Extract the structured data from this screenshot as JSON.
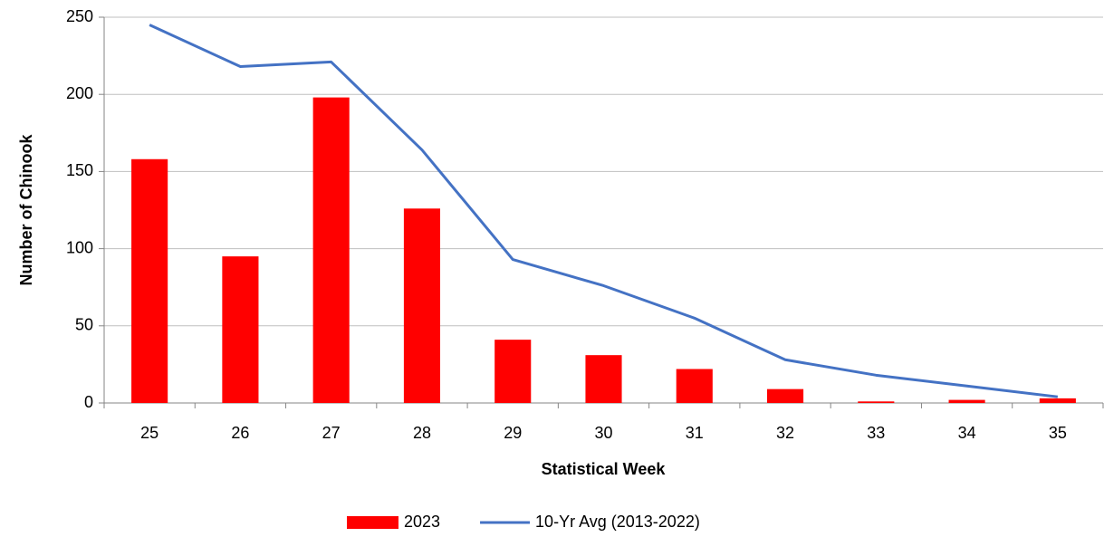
{
  "chart_data": {
    "type": "bar",
    "x_label": "Statistical Week",
    "y_label": "Number of Chinook",
    "categories": [
      "25",
      "26",
      "27",
      "28",
      "29",
      "30",
      "31",
      "32",
      "33",
      "34",
      "35"
    ],
    "series": [
      {
        "name": "2023",
        "type": "bar",
        "color": "#ff0000",
        "values": [
          158,
          95,
          198,
          126,
          41,
          31,
          22,
          9,
          1,
          2,
          3
        ]
      },
      {
        "name": "10-Yr Avg (2013-2022)",
        "type": "line",
        "color": "#4472c4",
        "values": [
          245,
          218,
          221,
          164,
          93,
          76,
          55,
          28,
          18,
          11,
          4
        ]
      }
    ],
    "ylim": [
      0,
      250
    ],
    "yticks": [
      0,
      50,
      100,
      150,
      200,
      250
    ],
    "grid": true,
    "legend": "bottom"
  }
}
